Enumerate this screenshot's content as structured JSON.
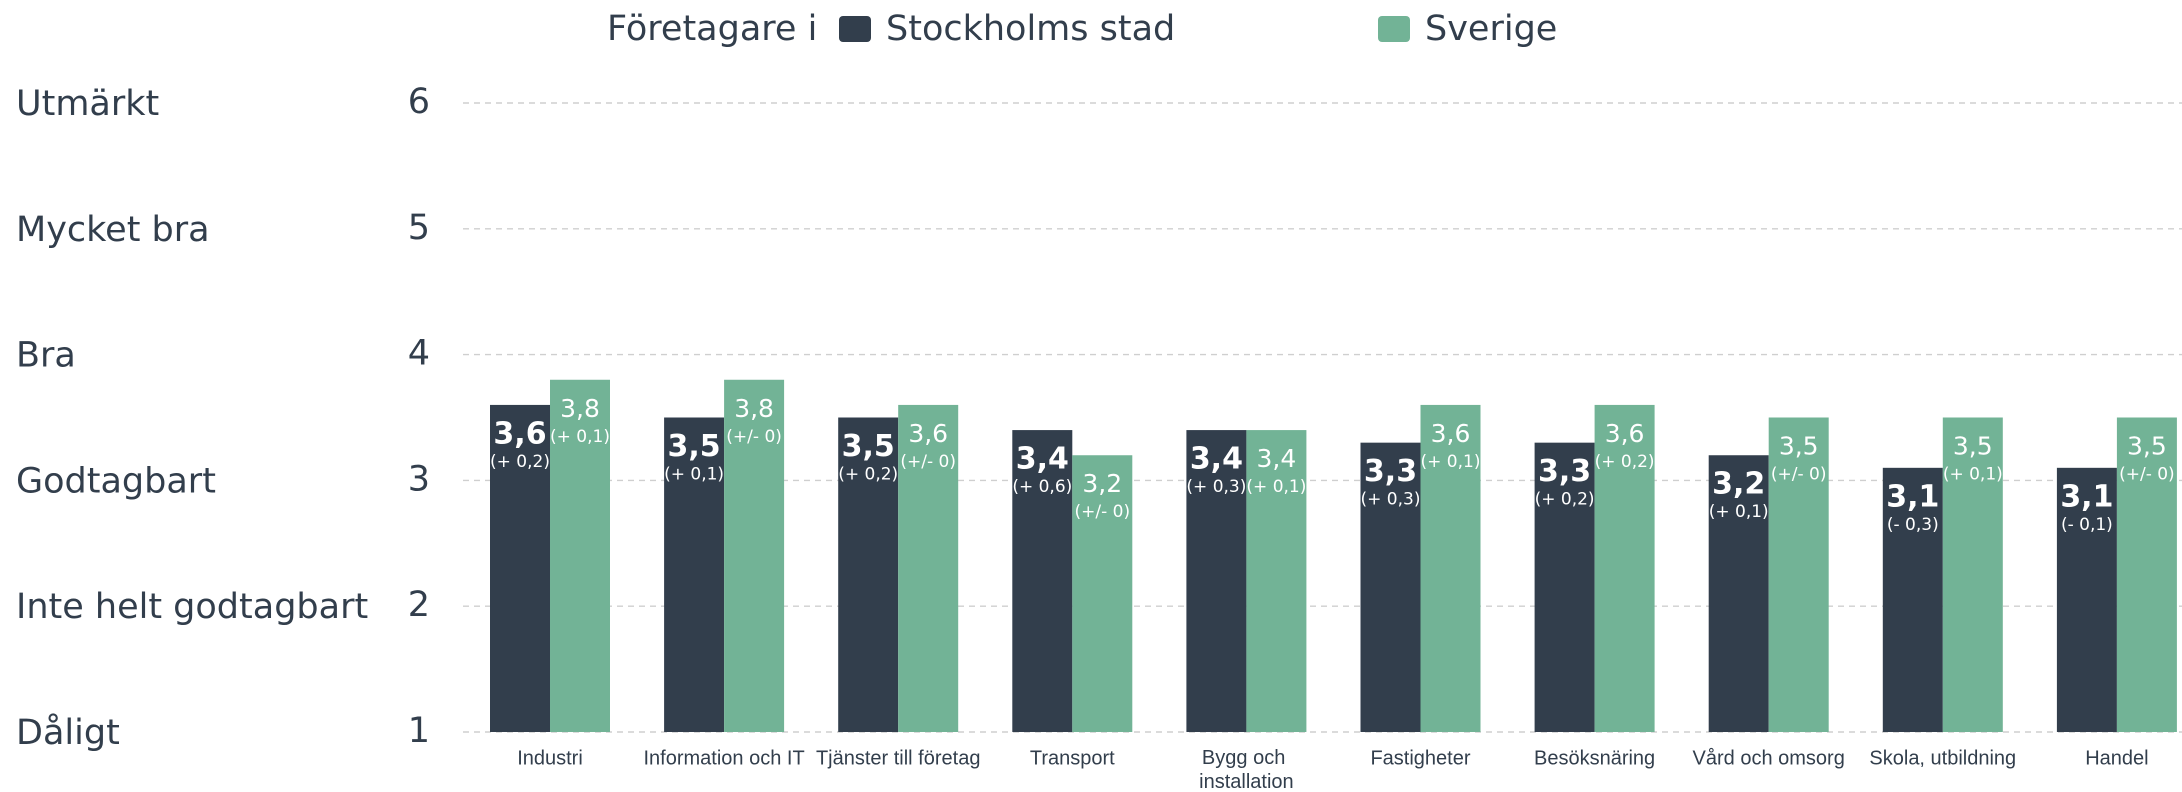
{
  "chart_data": {
    "type": "bar",
    "legend_title": "Företagare i",
    "categories": [
      "Industri",
      "Information och IT",
      "Tjänster till företag",
      "Transport",
      "Bygg och installation",
      "Fastigheter",
      "Besöksnäring",
      "Vård och omsorg",
      "Skola, utbildning",
      "Handel"
    ],
    "series": [
      {
        "name": "Stockholms stad",
        "color": "#323e4c",
        "values": [
          3.6,
          3.5,
          3.5,
          3.4,
          3.4,
          3.3,
          3.3,
          3.2,
          3.1,
          3.1
        ],
        "value_labels": [
          "3,6",
          "3,5",
          "3,5",
          "3,4",
          "3,4",
          "3,3",
          "3,3",
          "3,2",
          "3,1",
          "3,1"
        ],
        "changes": [
          "(+ 0,2)",
          "(+ 0,1)",
          "(+ 0,2)",
          "(+ 0,6)",
          "(+ 0,3)",
          "(+ 0,3)",
          "(+ 0,2)",
          "(+ 0,1)",
          "(- 0,3)",
          "(- 0,1)"
        ]
      },
      {
        "name": "Sverige",
        "color": "#72b396",
        "values": [
          3.8,
          3.8,
          3.6,
          3.2,
          3.4,
          3.6,
          3.6,
          3.5,
          3.5,
          3.5
        ],
        "value_labels": [
          "3,8",
          "3,8",
          "3,6",
          "3,2",
          "3,4",
          "3,6",
          "3,6",
          "3,5",
          "3,5",
          "3,5"
        ],
        "changes": [
          "(+ 0,1)",
          "(+/- 0)",
          "(+/- 0)",
          "(+/- 0)",
          "(+ 0,1)",
          "(+ 0,1)",
          "(+ 0,2)",
          "(+/- 0)",
          "(+ 0,1)",
          "(+/- 0)"
        ]
      }
    ],
    "ylim": [
      1,
      6
    ],
    "yticks": [
      1,
      2,
      3,
      4,
      5,
      6
    ],
    "ylevels": [
      "Dåligt",
      "Inte helt godtagbart",
      "Godtagbart",
      "Bra",
      "Mycket bra",
      "Utmärkt"
    ],
    "grid": true
  }
}
